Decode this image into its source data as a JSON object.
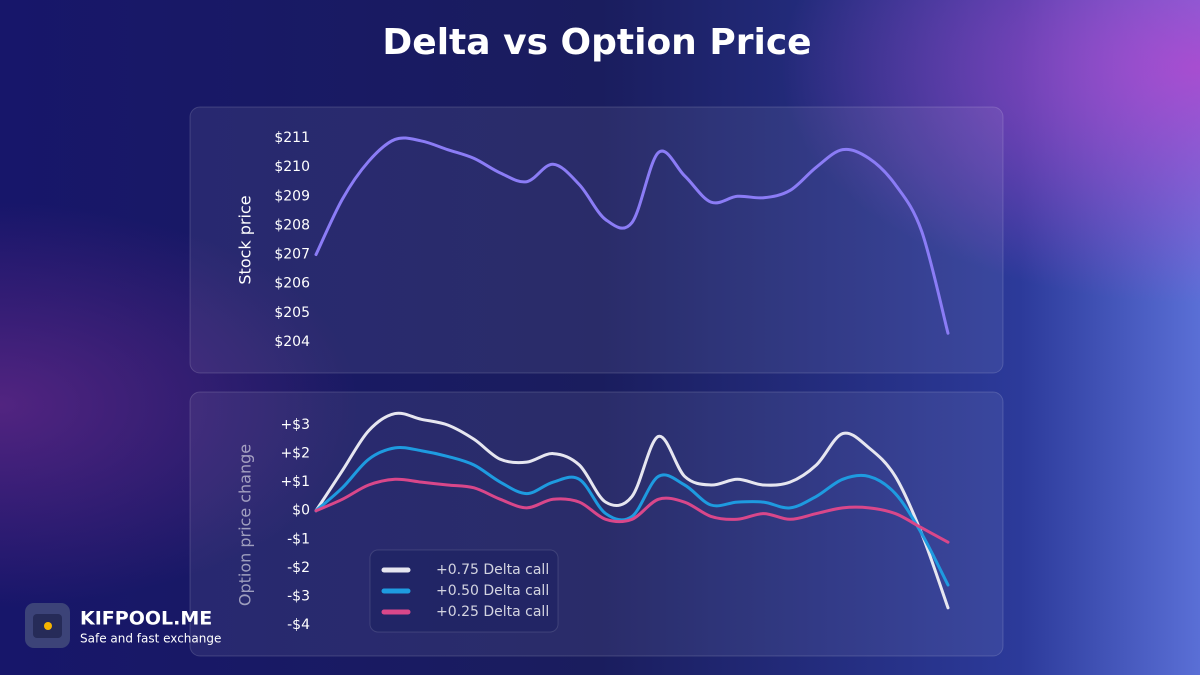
{
  "title": "Delta vs Option Price",
  "brand": {
    "name": "KIFPOOL.ME",
    "tagline": "Safe and fast exchange"
  },
  "chart_data": [
    {
      "type": "line",
      "y_label": "Stock price",
      "categories": [
        null,
        null,
        null,
        null,
        null,
        null,
        null,
        null,
        null,
        null,
        null,
        null,
        null,
        null,
        null,
        null,
        null,
        null,
        null,
        null,
        null,
        null,
        null,
        null,
        null
      ],
      "series": [
        {
          "name": "Stock price",
          "color": "#8b7cf6",
          "values": [
            207.0,
            208.9,
            210.2,
            210.95,
            210.9,
            210.6,
            210.3,
            209.8,
            209.5,
            210.1,
            209.4,
            208.2,
            208.1,
            210.5,
            209.7,
            208.8,
            209.0,
            208.95,
            209.2,
            210.0,
            210.6,
            210.3,
            209.4,
            207.8,
            204.3
          ]
        }
      ],
      "ylim": [
        204,
        211
      ],
      "yticks": [
        {
          "value": 204,
          "label": "$204"
        },
        {
          "value": 205,
          "label": "$205"
        },
        {
          "value": 206,
          "label": "$206"
        },
        {
          "value": 207,
          "label": "$207"
        },
        {
          "value": 208,
          "label": "$208"
        },
        {
          "value": 209,
          "label": "$209"
        },
        {
          "value": 210,
          "label": "$210"
        },
        {
          "value": 211,
          "label": "$211"
        }
      ]
    },
    {
      "type": "line",
      "y_label": "Option price change",
      "legend": "lower left",
      "categories": [
        null,
        null,
        null,
        null,
        null,
        null,
        null,
        null,
        null,
        null,
        null,
        null,
        null,
        null,
        null,
        null,
        null,
        null,
        null,
        null,
        null,
        null,
        null,
        null,
        null
      ],
      "series": [
        {
          "name": "+0.75 Delta call",
          "color": "#e6e6f0",
          "values": [
            0,
            1.4,
            2.8,
            3.4,
            3.2,
            3.0,
            2.5,
            1.8,
            1.7,
            2.0,
            1.6,
            0.3,
            0.5,
            2.6,
            1.2,
            0.9,
            1.1,
            0.9,
            1.0,
            1.6,
            2.7,
            2.2,
            1.2,
            -0.8,
            -3.4
          ]
        },
        {
          "name": "+0.50 Delta call",
          "color": "#1e9be0",
          "values": [
            0,
            0.8,
            1.8,
            2.2,
            2.1,
            1.9,
            1.6,
            1.0,
            0.6,
            1.0,
            1.1,
            -0.1,
            -0.2,
            1.2,
            0.9,
            0.2,
            0.3,
            0.3,
            0.1,
            0.5,
            1.1,
            1.2,
            0.6,
            -0.8,
            -2.6
          ]
        },
        {
          "name": "+0.25 Delta call",
          "color": "#d9478a",
          "values": [
            0,
            0.4,
            0.9,
            1.1,
            1.0,
            0.9,
            0.8,
            0.4,
            0.1,
            0.4,
            0.3,
            -0.3,
            -0.3,
            0.4,
            0.3,
            -0.2,
            -0.3,
            -0.1,
            -0.3,
            -0.1,
            0.1,
            0.1,
            -0.1,
            -0.6,
            -1.1
          ]
        }
      ],
      "ylim": [
        -4,
        3
      ],
      "yticks": [
        {
          "value": -4,
          "label": "-$4"
        },
        {
          "value": -3,
          "label": "-$3"
        },
        {
          "value": -2,
          "label": "-$2"
        },
        {
          "value": -1,
          "label": "-$1"
        },
        {
          "value": 0,
          "label": "$0"
        },
        {
          "value": 1,
          "label": "+$1"
        },
        {
          "value": 2,
          "label": "+$2"
        },
        {
          "value": 3,
          "label": "+$3"
        }
      ]
    }
  ]
}
